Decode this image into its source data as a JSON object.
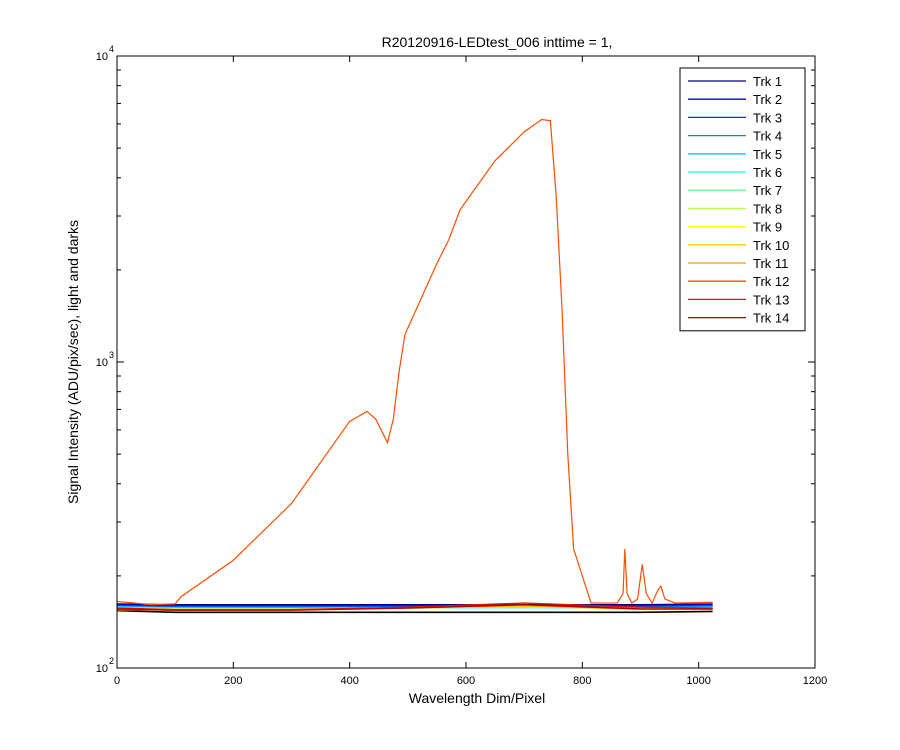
{
  "chart_data": {
    "type": "line",
    "title": "R20120916-LEDtest_006 inttime = 1,",
    "xlabel": "Wavelength Dim/Pixel",
    "ylabel": "Signal Intensity (ADU/pix/sec), light and darks",
    "xlim": [
      0,
      1200
    ],
    "ylim": [
      100,
      10000
    ],
    "yscale": "log",
    "x_ticks": [
      0,
      200,
      400,
      600,
      800,
      1000,
      1200
    ],
    "y_major_ticks": [
      {
        "value": 100,
        "base": "10",
        "exp": "2"
      },
      {
        "value": 1000,
        "base": "10",
        "exp": "3"
      },
      {
        "value": 10000,
        "base": "10",
        "exp": "4"
      }
    ],
    "grid": false,
    "legend_position": "top-right",
    "series": [
      {
        "name": "Trk 1",
        "color": "#00007f",
        "points": [
          [
            0,
            162
          ],
          [
            100,
            161
          ],
          [
            300,
            161
          ],
          [
            500,
            161
          ],
          [
            700,
            161
          ],
          [
            900,
            161
          ],
          [
            1024,
            162
          ]
        ]
      },
      {
        "name": "Trk 2",
        "color": "#0000d9",
        "points": [
          [
            0,
            161
          ],
          [
            100,
            160
          ],
          [
            300,
            160
          ],
          [
            500,
            160
          ],
          [
            700,
            160
          ],
          [
            900,
            160
          ],
          [
            1024,
            161
          ]
        ]
      },
      {
        "name": "Trk 3",
        "color": "#0033ff",
        "points": [
          [
            0,
            160
          ],
          [
            100,
            159
          ],
          [
            300,
            159
          ],
          [
            500,
            159
          ],
          [
            700,
            159
          ],
          [
            900,
            159
          ],
          [
            1024,
            160
          ]
        ]
      },
      {
        "name": "Trk 4",
        "color": "#0080ff",
        "points": [
          [
            0,
            159
          ],
          [
            100,
            158
          ],
          [
            300,
            158
          ],
          [
            500,
            158
          ],
          [
            700,
            158
          ],
          [
            900,
            158
          ],
          [
            1024,
            159
          ]
        ]
      },
      {
        "name": "Trk 5",
        "color": "#00ccff",
        "points": [
          [
            0,
            158
          ],
          [
            100,
            157
          ],
          [
            300,
            157
          ],
          [
            500,
            157.5
          ],
          [
            700,
            158
          ],
          [
            900,
            157
          ],
          [
            1024,
            158
          ]
        ]
      },
      {
        "name": "Trk 6",
        "color": "#1affe6",
        "points": [
          [
            0,
            158
          ],
          [
            100,
            157
          ],
          [
            300,
            156.5
          ],
          [
            500,
            157
          ],
          [
            700,
            157.5
          ],
          [
            900,
            157
          ],
          [
            1024,
            157.5
          ]
        ]
      },
      {
        "name": "Trk 7",
        "color": "#66ff99",
        "points": [
          [
            0,
            157
          ],
          [
            100,
            156
          ],
          [
            300,
            156
          ],
          [
            500,
            157
          ],
          [
            700,
            158
          ],
          [
            900,
            156.5
          ],
          [
            1024,
            157
          ]
        ]
      },
      {
        "name": "Trk 8",
        "color": "#b3ff4d",
        "points": [
          [
            0,
            157
          ],
          [
            100,
            156
          ],
          [
            300,
            156
          ],
          [
            500,
            157.5
          ],
          [
            700,
            159
          ],
          [
            900,
            156.5
          ],
          [
            1024,
            157
          ]
        ]
      },
      {
        "name": "Trk 9",
        "color": "#ffff00",
        "points": [
          [
            0,
            156
          ],
          [
            100,
            155.5
          ],
          [
            300,
            155.5
          ],
          [
            500,
            157
          ],
          [
            700,
            159
          ],
          [
            900,
            156
          ],
          [
            1024,
            156.5
          ]
        ]
      },
      {
        "name": "Trk 10",
        "color": "#ffcc00",
        "points": [
          [
            0,
            156
          ],
          [
            100,
            155
          ],
          [
            300,
            155
          ],
          [
            500,
            157
          ],
          [
            700,
            159.5
          ],
          [
            900,
            156
          ],
          [
            1024,
            156
          ]
        ]
      },
      {
        "name": "Trk 11",
        "color": "#ff9900",
        "points": [
          [
            0,
            155
          ],
          [
            100,
            154.5
          ],
          [
            300,
            155
          ],
          [
            500,
            157.5
          ],
          [
            700,
            160
          ],
          [
            900,
            155.5
          ],
          [
            1024,
            155.5
          ]
        ]
      },
      {
        "name": "Trk 12",
        "color": "#ff4d00",
        "points": [
          [
            0,
            165
          ],
          [
            60,
            161
          ],
          [
            100,
            162
          ],
          [
            110,
            171
          ],
          [
            200,
            225
          ],
          [
            300,
            345
          ],
          [
            400,
            640
          ],
          [
            430,
            690
          ],
          [
            445,
            650
          ],
          [
            465,
            545
          ],
          [
            475,
            650
          ],
          [
            485,
            930
          ],
          [
            495,
            1230
          ],
          [
            550,
            2100
          ],
          [
            570,
            2500
          ],
          [
            590,
            3150
          ],
          [
            650,
            4550
          ],
          [
            700,
            5650
          ],
          [
            730,
            6200
          ],
          [
            745,
            6150
          ],
          [
            755,
            3500
          ],
          [
            765,
            1500
          ],
          [
            775,
            500
          ],
          [
            785,
            245
          ],
          [
            800,
            200
          ],
          [
            815,
            163
          ],
          [
            860,
            163
          ],
          [
            870,
            175
          ],
          [
            873,
            245
          ],
          [
            877,
            175
          ],
          [
            885,
            163
          ],
          [
            895,
            168
          ],
          [
            903,
            218
          ],
          [
            910,
            175
          ],
          [
            920,
            163
          ],
          [
            930,
            180
          ],
          [
            935,
            185
          ],
          [
            942,
            168
          ],
          [
            960,
            163
          ],
          [
            1024,
            164
          ]
        ]
      },
      {
        "name": "Trk 13",
        "color": "#e01a00",
        "points": [
          [
            0,
            157
          ],
          [
            100,
            155
          ],
          [
            300,
            155
          ],
          [
            500,
            158
          ],
          [
            700,
            163
          ],
          [
            900,
            158
          ],
          [
            1024,
            157
          ]
        ]
      },
      {
        "name": "Trk 14",
        "color": "#b30000",
        "points": [
          [
            0,
            156
          ],
          [
            100,
            154.5
          ],
          [
            300,
            154.5
          ],
          [
            500,
            157
          ],
          [
            700,
            161
          ],
          [
            900,
            156
          ],
          [
            1024,
            156
          ]
        ]
      }
    ],
    "dark_floor": {
      "color": "#000000",
      "points": [
        [
          0,
          154
        ],
        [
          100,
          152
        ],
        [
          300,
          152
        ],
        [
          500,
          152
        ],
        [
          700,
          152
        ],
        [
          900,
          152
        ],
        [
          1024,
          153
        ]
      ]
    }
  }
}
